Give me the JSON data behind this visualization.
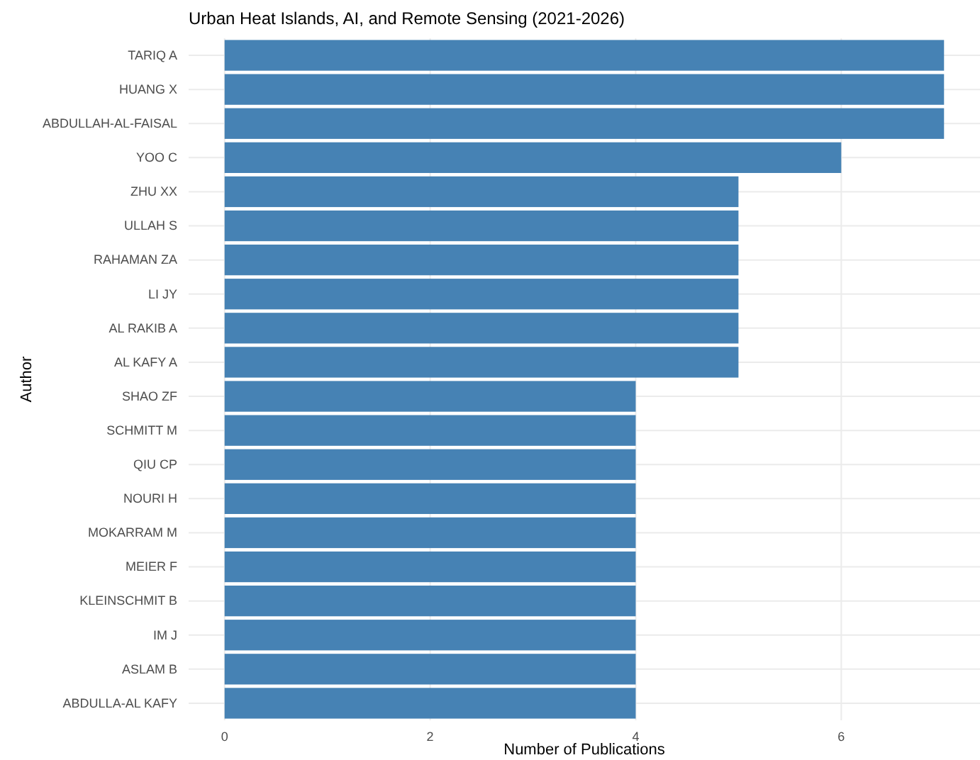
{
  "chart_data": {
    "type": "bar",
    "orientation": "horizontal",
    "title": "Urban Heat Islands, AI, and Remote Sensing (2021-2026)",
    "xlabel": "Number of Publications",
    "ylabel": "Author",
    "categories": [
      "TARIQ A",
      "HUANG X",
      "ABDULLAH-AL-FAISAL",
      "YOO C",
      "ZHU XX",
      "ULLAH S",
      "RAHAMAN ZA",
      "LI JY",
      "AL RAKIB A",
      "AL KAFY A",
      "SHAO ZF",
      "SCHMITT M",
      "QIU CP",
      "NOURI H",
      "MOKARRAM M",
      "MEIER F",
      "KLEINSCHMIT B",
      "IM J",
      "ASLAM B",
      "ABDULLA-AL KAFY"
    ],
    "values": [
      7,
      7,
      7,
      6,
      5,
      5,
      5,
      5,
      5,
      5,
      4,
      4,
      4,
      4,
      4,
      4,
      4,
      4,
      4,
      4
    ],
    "color": "#4682b4",
    "xlim": [
      -0.35,
      7.35
    ],
    "xticks": [
      0,
      2,
      4,
      6
    ],
    "grid": true
  }
}
